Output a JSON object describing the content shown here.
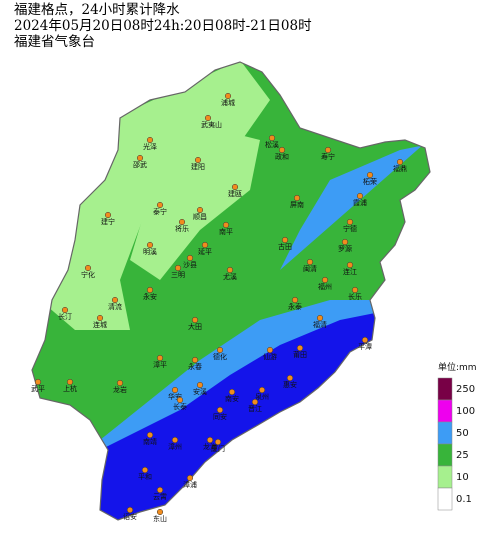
{
  "header": {
    "lines": [
      "福建格点，24小时累计降水",
      "2024年05月20日08时24h:20日08时-21日08时",
      "福建省气象台"
    ]
  },
  "legend": {
    "unit": "单位:mm",
    "levels": [
      {
        "label": "250",
        "color": "#780046"
      },
      {
        "label": "100",
        "color": "#ee00ee"
      },
      {
        "label": "50",
        "color": "#3d9cf5"
      },
      {
        "label": "25",
        "color": "#38b43a"
      },
      {
        "label": "10",
        "color": "#a6f08e"
      },
      {
        "label": "0.1",
        "color": "#ffffff"
      }
    ]
  },
  "cities": [
    "浦城",
    "武夷山",
    "光泽",
    "松溪",
    "政和",
    "邵武",
    "建阳",
    "寿宁",
    "福鼎",
    "建瓯",
    "柘荣",
    "泰宁",
    "顺昌",
    "屏南",
    "霞浦",
    "建宁",
    "将乐",
    "南平",
    "宁德",
    "古田",
    "延平",
    "罗源",
    "明溪",
    "沙县",
    "三明",
    "闽清",
    "连江",
    "宁化",
    "永安",
    "尤溪",
    "福州",
    "长乐",
    "清流",
    "永泰",
    "福清",
    "长汀",
    "连城",
    "大田",
    "平潭",
    "德化",
    "仙游",
    "莆田",
    "永春",
    "武平",
    "上杭",
    "漳平",
    "安溪",
    "南安",
    "泉州",
    "惠安",
    "龙岩",
    "华安",
    "晋江",
    "长泰",
    "同安",
    "厦门",
    "漳州",
    "南靖",
    "龙海",
    "平和",
    "漳浦",
    "云霄",
    "诏安",
    "东山"
  ]
}
